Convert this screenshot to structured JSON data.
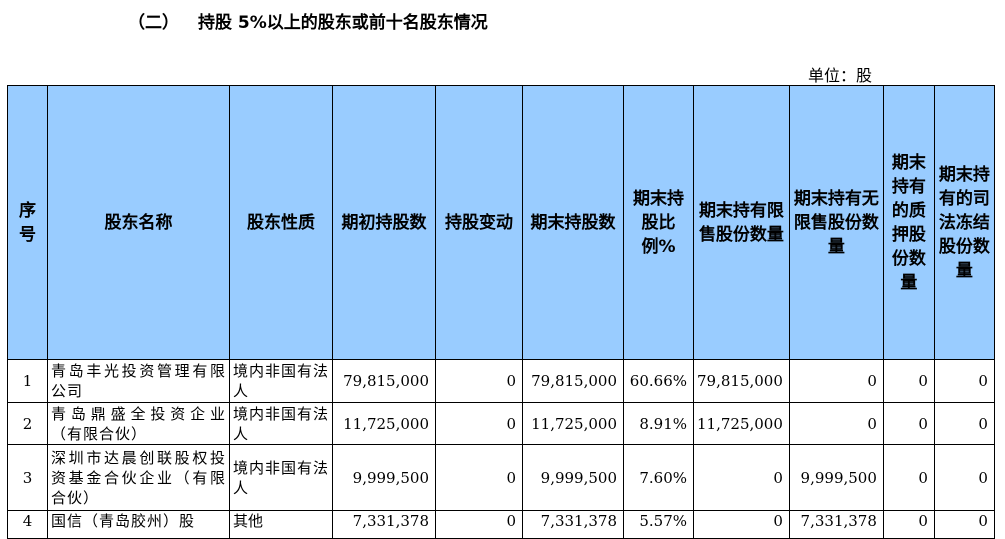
{
  "section": {
    "number": "（二）",
    "title": "持股 5%以上的股东或前十名股东情况"
  },
  "unit": "单位：股",
  "headers": [
    "序号",
    "股东名称",
    "股东性质",
    "期初持股数",
    "持股变动",
    "期末持股数",
    "期末持股比例%",
    "期末持有限售股份数量",
    "期末持有无限售股份数量",
    "期末持有的质押股份数量",
    "期末持有的司法冻结股份数量"
  ],
  "rows": [
    {
      "no": "1",
      "name": "青岛丰光投资管理有限公司",
      "nature": "境内非国有法人",
      "begin": "79,815,000",
      "change": "0",
      "end": "79,815,000",
      "ratio": "60.66%",
      "restricted": "79,815,000",
      "unrestricted": "0",
      "pledged": "0",
      "frozen": "0"
    },
    {
      "no": "2",
      "name": "青岛鼎盛全投资企业（有限合伙）",
      "nature": "境内非国有法人",
      "begin": "11,725,000",
      "change": "0",
      "end": "11,725,000",
      "ratio": "8.91%",
      "restricted": "11,725,000",
      "unrestricted": "0",
      "pledged": "0",
      "frozen": "0"
    },
    {
      "no": "3",
      "name": "深圳市达晨创联股权投资基金合伙企业（有限合伙）",
      "nature": "境内非国有法人",
      "begin": "9,999,500",
      "change": "0",
      "end": "9,999,500",
      "ratio": "7.60%",
      "restricted": "0",
      "unrestricted": "9,999,500",
      "pledged": "0",
      "frozen": "0"
    },
    {
      "no": "4",
      "name": "国信（青岛胶州）股",
      "nature": "其他",
      "begin": "7,331,378",
      "change": "0",
      "end": "7,331,378",
      "ratio": "5.57%",
      "restricted": "0",
      "unrestricted": "7,331,378",
      "pledged": "0",
      "frozen": "0"
    }
  ]
}
